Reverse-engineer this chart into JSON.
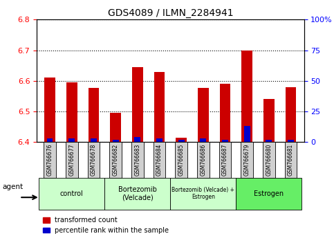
{
  "title": "GDS4089 / ILMN_2284941",
  "samples": [
    "GSM766676",
    "GSM766677",
    "GSM766678",
    "GSM766682",
    "GSM766683",
    "GSM766684",
    "GSM766685",
    "GSM766686",
    "GSM766687",
    "GSM766679",
    "GSM766680",
    "GSM766681"
  ],
  "red_values": [
    6.61,
    6.595,
    6.578,
    6.495,
    6.645,
    6.63,
    6.415,
    6.578,
    6.59,
    6.7,
    6.54,
    6.58
  ],
  "blue_percentiles": [
    3,
    3,
    3,
    2,
    4,
    3,
    2,
    3,
    2,
    13,
    2,
    2
  ],
  "y_min": 6.4,
  "y_max": 6.8,
  "y_ticks_left": [
    6.4,
    6.5,
    6.6,
    6.7,
    6.8
  ],
  "y_ticks_right": [
    0,
    25,
    50,
    75,
    100
  ],
  "groups": [
    {
      "label": "control",
      "start": 0,
      "end": 3,
      "color": "#ccffcc"
    },
    {
      "label": "Bortezomib\n(Velcade)",
      "start": 3,
      "end": 6,
      "color": "#ccffcc"
    },
    {
      "label": "Bortezomib (Velcade) +\nEstrogen",
      "start": 6,
      "end": 9,
      "color": "#ccffcc"
    },
    {
      "label": "Estrogen",
      "start": 9,
      "end": 12,
      "color": "#66ee66"
    }
  ],
  "agent_label": "agent",
  "bar_width": 0.5,
  "red_color": "#cc0000",
  "blue_color": "#0000cc",
  "base_value": 6.4,
  "bg_color": "#ffffff",
  "sample_box_color": "#d0d0d0"
}
